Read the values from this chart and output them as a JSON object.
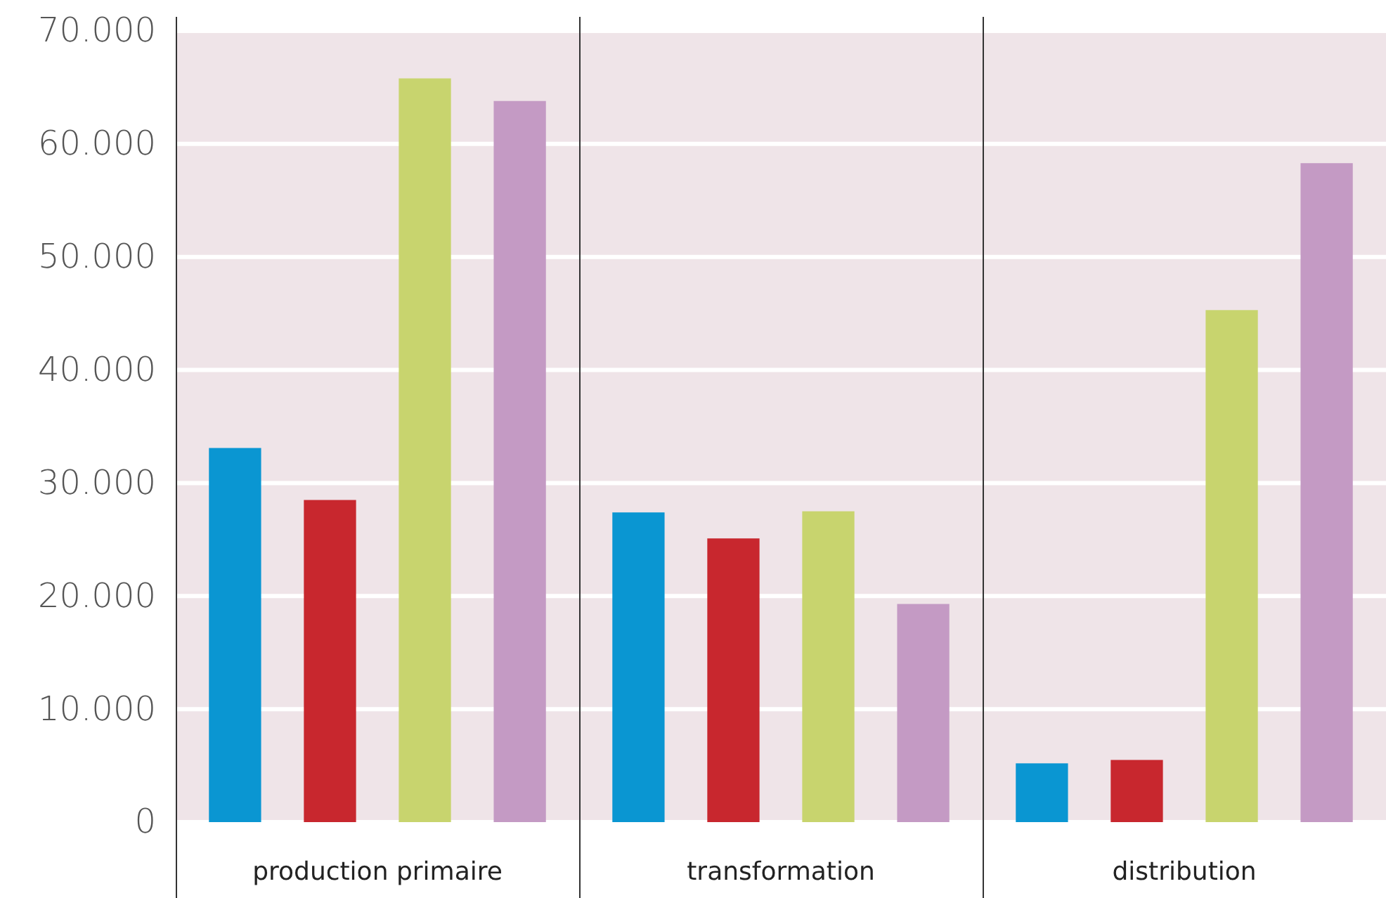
{
  "chart_data": {
    "type": "bar",
    "categories": [
      "production primaire",
      "transformation",
      "distribution"
    ],
    "series": [
      {
        "color": "#0a96d2",
        "values": [
          33100,
          27400,
          5200
        ]
      },
      {
        "color": "#c8272e",
        "values": [
          28500,
          25100,
          5500
        ]
      },
      {
        "color": "#c8d46e",
        "values": [
          65800,
          27500,
          45300
        ]
      },
      {
        "color": "#c49ac4",
        "values": [
          63800,
          19300,
          58300
        ]
      }
    ],
    "ylim": [
      0,
      70000
    ],
    "yticks": [
      {
        "value": 0,
        "label": "0"
      },
      {
        "value": 10000,
        "label": "10.000"
      },
      {
        "value": 20000,
        "label": "20.000"
      },
      {
        "value": 30000,
        "label": "30.000"
      },
      {
        "value": 40000,
        "label": "40.000"
      },
      {
        "value": 50000,
        "label": "50.000"
      },
      {
        "value": 60000,
        "label": "60.000"
      },
      {
        "value": 70000,
        "label": "70.000"
      }
    ],
    "grid": "y"
  }
}
